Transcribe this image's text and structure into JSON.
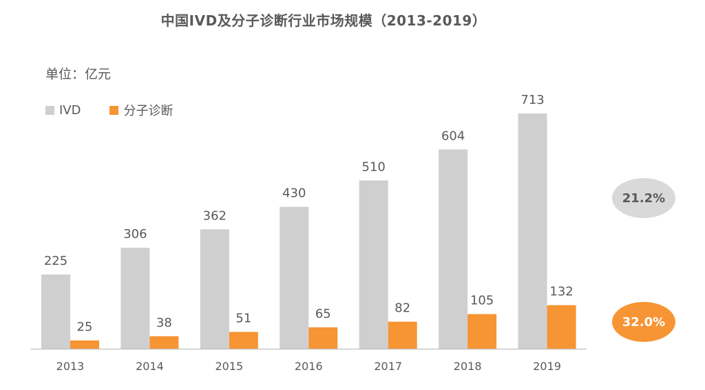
{
  "title": "中国IVD及分子诊断行业市场规模（2013-2019）",
  "unit_label": "单位：亿元",
  "colors": {
    "ivd": "#d0cfd0",
    "molecular": "#f79433",
    "axis": "#bfbfbf"
  },
  "cagr": {
    "ivd": "21.2%",
    "molecular": "32.0%"
  },
  "chart_data": {
    "type": "bar",
    "title": "中国IVD及分子诊断行业市场规模（2013-2019）",
    "xlabel": "",
    "ylabel": "",
    "categories": [
      "2013",
      "2014",
      "2015",
      "2016",
      "2017",
      "2018",
      "2019"
    ],
    "series": [
      {
        "name": "IVD",
        "values": [
          225,
          306,
          362,
          430,
          510,
          604,
          713
        ]
      },
      {
        "name": "分子诊断",
        "values": [
          25,
          38,
          51,
          65,
          82,
          105,
          132
        ]
      }
    ],
    "ylim": [
      0,
      713
    ],
    "grid": false,
    "legend": "top-left",
    "data_labels": true
  }
}
